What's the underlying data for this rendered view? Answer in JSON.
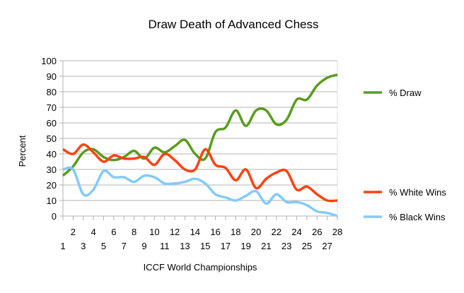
{
  "chart_data": {
    "type": "line",
    "title": "Draw Death of Advanced Chess",
    "xlabel": "ICCF World Championships",
    "ylabel": "Percent",
    "ylim": [
      0,
      100
    ],
    "yticks": [
      0,
      10,
      20,
      30,
      40,
      50,
      60,
      70,
      80,
      90,
      100
    ],
    "grid": true,
    "smooth": true,
    "legend": "right",
    "x": [
      1,
      2,
      3,
      4,
      5,
      6,
      7,
      8,
      9,
      10,
      11,
      12,
      13,
      14,
      15,
      16,
      17,
      18,
      19,
      20,
      21,
      22,
      23,
      24,
      25,
      26,
      27,
      28
    ],
    "series": [
      {
        "name": "% Draw",
        "color": "#579d1c",
        "values": [
          26,
          32,
          41,
          43,
          38,
          36,
          38,
          42,
          37,
          44,
          41,
          45,
          49,
          40,
          37,
          54,
          57,
          68,
          58,
          68,
          68,
          59,
          62,
          75,
          75,
          84,
          89,
          91
        ]
      },
      {
        "name": "% White Wins",
        "color": "#ff420e",
        "values": [
          43,
          40,
          46,
          41,
          35,
          39,
          37,
          37,
          38,
          33,
          40,
          36,
          30,
          30,
          43,
          33,
          31,
          23,
          30,
          18,
          24,
          28,
          29,
          17,
          19,
          14,
          10,
          10
        ]
      },
      {
        "name": "% Black Wins",
        "color": "#83caff",
        "values": [
          30,
          30,
          14,
          17,
          29,
          25,
          25,
          22,
          26,
          25,
          21,
          21,
          22,
          24,
          21,
          14,
          12,
          10,
          13,
          16,
          8,
          14,
          9,
          9,
          7,
          3,
          2,
          0
        ]
      }
    ]
  }
}
